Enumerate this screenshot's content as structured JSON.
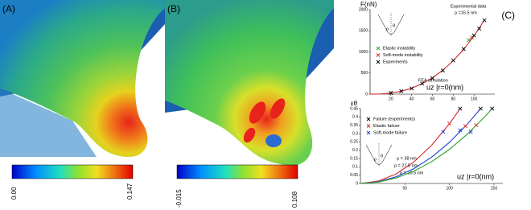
{
  "panels": [
    {
      "label": "(A)",
      "colorbar": [
        "0.00",
        "0.147"
      ]
    },
    {
      "label": "(B)",
      "colorbar": [
        "-0.015",
        "0.108"
      ]
    }
  ],
  "chart_data": [
    {
      "type": "line",
      "panel_label": "(C)",
      "y_label": "F(nN)",
      "x_label": "uz |r=0(nm)",
      "inset_labels": [
        "ρ",
        "θ"
      ],
      "annotations": [
        "Experimental data",
        "ρ =16.5 nm",
        "FEA simulation"
      ],
      "xlim": [
        0,
        120
      ],
      "xticks": [
        20,
        40,
        60,
        80,
        100
      ],
      "ylim": [
        0,
        2000
      ],
      "yticks": [
        0,
        500,
        1000,
        1500,
        2000
      ],
      "series": [
        {
          "color": "#d62728",
          "x": [
            0,
            10,
            20,
            30,
            40,
            50,
            60,
            70,
            80,
            90,
            100,
            110
          ],
          "values": [
            0,
            4.6,
            24.6,
            68,
            140,
            245,
            386,
            567,
            790,
            1059,
            1380,
            1750
          ]
        },
        {
          "name": "Elastic instability",
          "color": "#2ca02c",
          "marker": "x",
          "x": [
            95
          ],
          "values": [
            1280
          ]
        },
        {
          "name": "Soft-mode instability",
          "color": "#d62728",
          "marker": "x",
          "x": [
            98
          ],
          "values": [
            1340
          ]
        },
        {
          "name": "Experiments",
          "color": "#000000",
          "marker": "x",
          "x": [
            20,
            30,
            40,
            50,
            60,
            70,
            80,
            90,
            100,
            105,
            110
          ],
          "values": [
            30,
            70,
            135,
            250,
            380,
            560,
            800,
            1070,
            1390,
            1550,
            1750
          ]
        }
      ]
    },
    {
      "type": "line",
      "y_label": "εθ",
      "x_label": "uz |r=0(nm)",
      "inset_labels": [
        "ρ",
        "θ"
      ],
      "xlim": [
        0,
        160
      ],
      "xticks": [
        50,
        100,
        150
      ],
      "ylim": [
        0,
        0.45
      ],
      "yticks": [
        0,
        0.05,
        0.1,
        0.15,
        0.2,
        0.25,
        0.3,
        0.35,
        0.4,
        0.45
      ],
      "series": [
        {
          "color": "#d62728",
          "label": "ρ = 16.5 nm",
          "x": [
            0,
            20,
            40,
            60,
            80,
            100,
            112
          ],
          "values": [
            0,
            0.014,
            0.057,
            0.129,
            0.23,
            0.359,
            0.45
          ]
        },
        {
          "color": "#1f3fd0",
          "label": "ρ = 27.5 nm",
          "x": [
            0,
            20,
            40,
            60,
            80,
            100,
            120,
            135
          ],
          "values": [
            0,
            0.01,
            0.04,
            0.089,
            0.158,
            0.247,
            0.356,
            0.45
          ]
        },
        {
          "color": "#2ca02c",
          "label": "ρ = 38 nm",
          "x": [
            0,
            20,
            40,
            60,
            80,
            100,
            120,
            140,
            148
          ],
          "values": [
            0,
            0.008,
            0.033,
            0.074,
            0.131,
            0.205,
            0.296,
            0.403,
            0.45
          ]
        },
        {
          "name": "Failure (experiments)",
          "color": "#000000",
          "marker": "x",
          "x": [
            112,
            135,
            148
          ],
          "values": [
            0.45,
            0.45,
            0.45
          ]
        },
        {
          "name": "Elastic failure",
          "color": "#d62728",
          "marker": "x",
          "x": [
            100,
            118,
            130
          ],
          "values": [
            0.36,
            0.345,
            0.35
          ]
        },
        {
          "name": "Soft-mode failure",
          "color": "#1f3fd0",
          "marker": "x",
          "x": [
            93,
            112,
            124
          ],
          "values": [
            0.31,
            0.32,
            0.31
          ]
        }
      ]
    }
  ]
}
